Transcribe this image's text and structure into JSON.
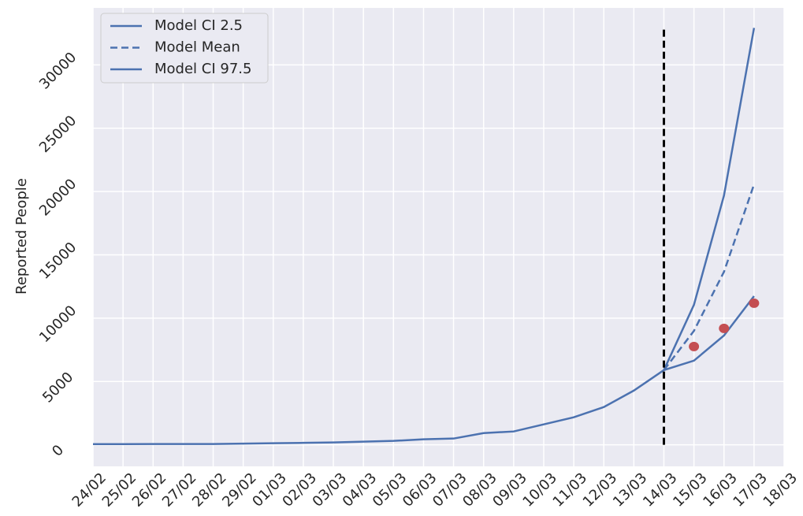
{
  "chart_data": {
    "type": "line",
    "ylabel": "Reported People",
    "categories": [
      "24/02",
      "25/02",
      "26/02",
      "27/02",
      "28/02",
      "29/02",
      "01/03",
      "02/03",
      "03/03",
      "04/03",
      "05/03",
      "06/03",
      "07/03",
      "08/03",
      "09/03",
      "10/03",
      "11/03",
      "12/03",
      "13/03",
      "14/03",
      "15/03",
      "16/03",
      "17/03",
      "18/03"
    ],
    "series": [
      {
        "name": "Model CI 2.5",
        "color": "#4c72b0",
        "dash": false,
        "values": [
          60,
          60,
          62,
          62,
          65,
          93,
          124,
          155,
          186,
          250,
          310,
          435,
          497,
          930,
          1056,
          1615,
          2174,
          2981,
          4286,
          5900,
          6646,
          8634,
          11739,
          null
        ]
      },
      {
        "name": "Model Mean",
        "color": "#4c72b0",
        "dash": true,
        "values": [
          null,
          null,
          null,
          null,
          null,
          null,
          null,
          null,
          null,
          null,
          null,
          null,
          null,
          null,
          null,
          null,
          null,
          null,
          null,
          5900,
          9000,
          13665,
          20559,
          null
        ]
      },
      {
        "name": "Model CI 97.5",
        "color": "#4c72b0",
        "dash": false,
        "values": [
          null,
          null,
          null,
          null,
          null,
          null,
          null,
          null,
          null,
          null,
          null,
          null,
          null,
          null,
          null,
          null,
          null,
          null,
          null,
          5900,
          11056,
          19690,
          32919,
          null
        ]
      }
    ],
    "points": {
      "color": "#c44e52",
      "x": [
        "15/03",
        "16/03",
        "17/03"
      ],
      "values": [
        7764,
        9193,
        11180
      ]
    },
    "vertical_line": {
      "x": "14/03",
      "from": 0,
      "to": 32919,
      "color": "#000000"
    },
    "ylim": [
      -1700,
      34500
    ],
    "yticks": [
      0,
      5000,
      10000,
      15000,
      20000,
      25000,
      30000
    ],
    "grid": true,
    "legend": "upper-left"
  }
}
